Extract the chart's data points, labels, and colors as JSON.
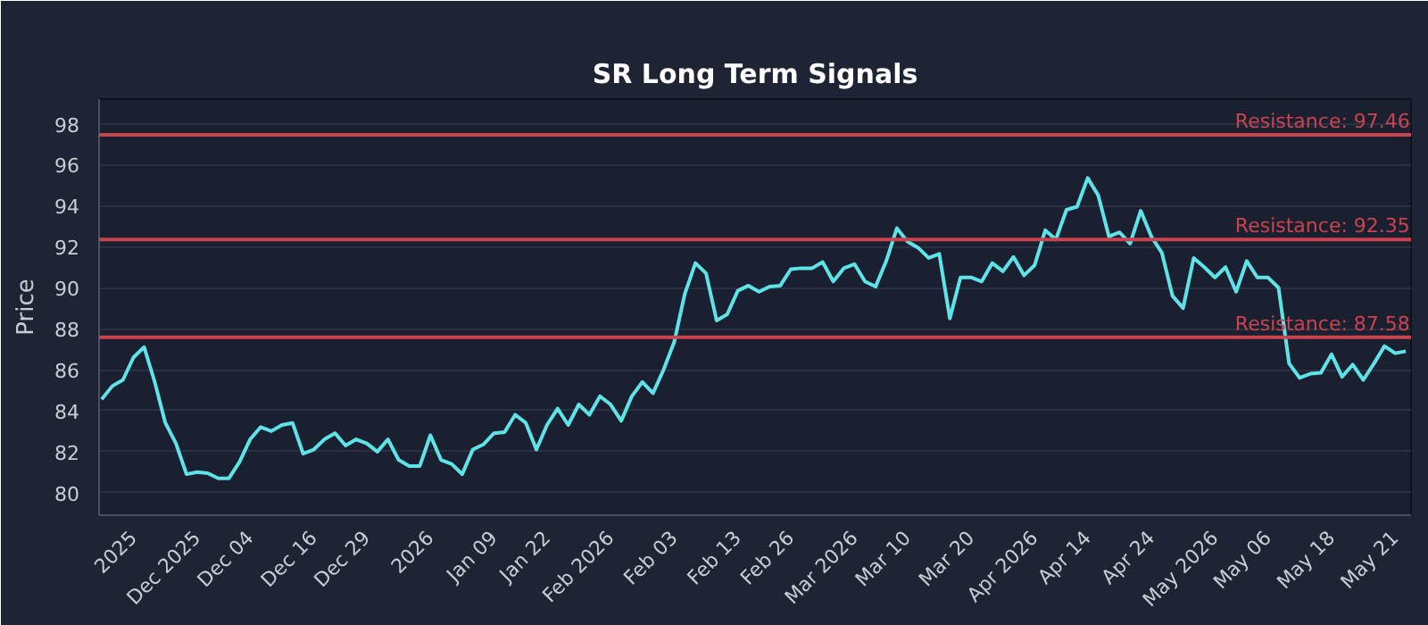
{
  "chart_data": {
    "type": "line",
    "title": "SR Long Term Signals",
    "ylabel": "Price",
    "categories": [
      null,
      null,
      null,
      "2025",
      null,
      null,
      null,
      null,
      null,
      "Dec 2025",
      null,
      null,
      null,
      null,
      "Dec 04",
      null,
      null,
      null,
      null,
      null,
      "Dec 16",
      null,
      null,
      null,
      null,
      "Dec 29",
      null,
      null,
      null,
      null,
      null,
      "2026",
      null,
      null,
      null,
      null,
      null,
      "Jan 09",
      null,
      null,
      null,
      null,
      "Jan 22",
      null,
      null,
      null,
      null,
      null,
      "Feb 2026",
      null,
      null,
      null,
      null,
      null,
      "Feb 03",
      null,
      null,
      null,
      null,
      null,
      "Feb 13",
      null,
      null,
      null,
      null,
      "Feb 26",
      null,
      null,
      null,
      null,
      null,
      "Mar 2026",
      null,
      null,
      null,
      null,
      "Mar 10",
      null,
      null,
      null,
      null,
      null,
      "Mar 20",
      null,
      null,
      null,
      null,
      null,
      "Apr 2026",
      null,
      null,
      null,
      null,
      "Apr 14",
      null,
      null,
      null,
      null,
      null,
      "Apr 24",
      null,
      null,
      null,
      null,
      null,
      "May 2026",
      null,
      null,
      null,
      null,
      "May 06",
      null,
      null,
      null,
      null,
      null,
      "May 18",
      null,
      null,
      null,
      null,
      null,
      "May 21",
      null
    ],
    "series": [
      {
        "color": "#5ee3e8",
        "values": [
          84.55,
          85.2,
          85.5,
          86.6,
          87.1,
          85.4,
          83.4,
          82.4,
          80.9,
          81.0,
          80.95,
          80.7,
          80.7,
          81.5,
          82.6,
          83.2,
          83.0,
          83.3,
          83.4,
          81.9,
          82.1,
          82.6,
          82.9,
          82.3,
          82.6,
          82.4,
          82.0,
          82.6,
          81.6,
          81.3,
          81.3,
          82.8,
          81.6,
          81.4,
          80.9,
          82.1,
          82.35,
          82.9,
          82.95,
          83.8,
          83.4,
          82.1,
          83.3,
          84.1,
          83.3,
          84.3,
          83.8,
          84.7,
          84.3,
          83.5,
          84.7,
          85.4,
          84.85,
          86.0,
          87.35,
          89.7,
          91.2,
          90.7,
          88.4,
          88.7,
          89.85,
          90.1,
          89.8,
          90.05,
          90.1,
          90.9,
          90.95,
          90.95,
          91.25,
          90.3,
          90.95,
          91.15,
          90.3,
          90.05,
          91.3,
          92.9,
          92.25,
          91.95,
          91.45,
          91.65,
          88.5,
          90.5,
          90.5,
          90.3,
          91.2,
          90.8,
          91.5,
          90.6,
          91.1,
          92.8,
          92.35,
          93.8,
          93.95,
          95.35,
          94.5,
          92.5,
          92.7,
          92.15,
          93.75,
          92.5,
          91.7,
          89.6,
          89.0,
          91.45,
          91.0,
          90.5,
          91.0,
          89.8,
          91.3,
          90.5,
          90.5,
          90.0,
          86.3,
          85.6,
          85.8,
          85.85,
          86.75,
          85.65,
          86.25,
          85.5,
          86.3,
          87.15,
          86.8,
          86.9
        ]
      }
    ],
    "ylim": [
      78.9,
      99.2
    ],
    "yticks": [
      80,
      82,
      84,
      86,
      88,
      90,
      92,
      94,
      96,
      98
    ],
    "grid": "y",
    "ref_lines": [
      {
        "axis": "y",
        "value": 97.46,
        "label": "Resistance: 97.46",
        "color": "#c9444f"
      },
      {
        "axis": "y",
        "value": 92.35,
        "label": "Resistance: 92.35",
        "color": "#c9444f"
      },
      {
        "axis": "y",
        "value": 87.58,
        "label": "Resistance: 87.58",
        "color": "#c9444f"
      }
    ]
  }
}
